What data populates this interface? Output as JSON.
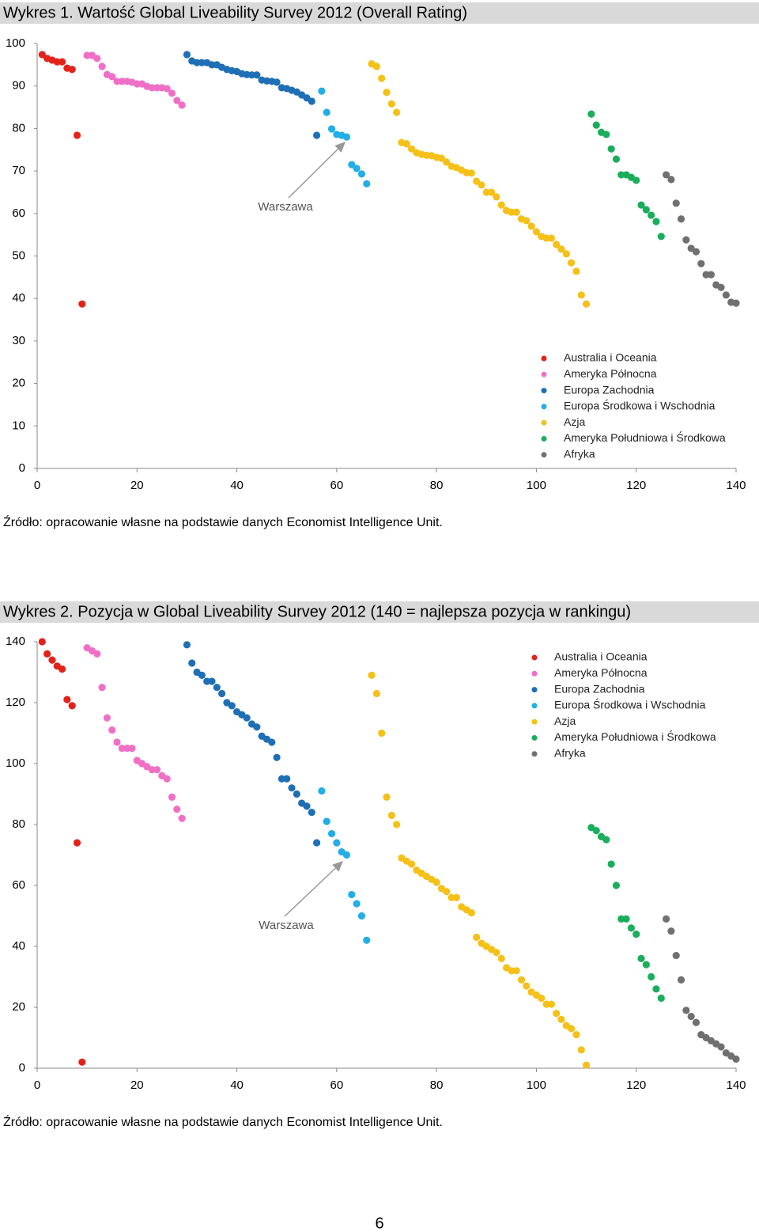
{
  "chart_data": [
    {
      "type": "scatter",
      "title": "Wykres 1. Wartość Global Liveability Survey 2012 (Overall Rating)",
      "source": "Źródło: opracowanie własne na podstawie danych Economist Intelligence Unit.",
      "annotations": [
        {
          "text": "Warszawa"
        }
      ],
      "xlim": [
        0,
        140
      ],
      "xticks": [
        0,
        20,
        40,
        60,
        80,
        100,
        120,
        140
      ],
      "ylim": [
        0,
        100
      ],
      "yticks": [
        0,
        10,
        20,
        30,
        40,
        50,
        60,
        70,
        80,
        90,
        100
      ],
      "legend": "bottom-right",
      "grid": false,
      "series": [
        {
          "name": "Australia i Oceania",
          "color": "#e2231a",
          "x": [
            1,
            2,
            3,
            4,
            5,
            6,
            7,
            8,
            9
          ],
          "values": [
            97.4,
            96.5,
            96.1,
            95.7,
            95.7,
            94.2,
            93.9,
            78.4,
            38.7
          ]
        },
        {
          "name": "Ameryka Północna",
          "color": "#f06fc6",
          "x": [
            10,
            11,
            12,
            13,
            14,
            15,
            16,
            17,
            18,
            19,
            20,
            21,
            22,
            23,
            24,
            25,
            26,
            27,
            28,
            29
          ],
          "values": [
            97.2,
            97.2,
            96.5,
            94.6,
            92.7,
            92.2,
            91.1,
            91.1,
            91.1,
            90.9,
            90.5,
            90.5,
            89.9,
            89.6,
            89.6,
            89.6,
            89.4,
            88.3,
            86.6,
            85.5
          ]
        },
        {
          "name": "Europa Zachodnia",
          "color": "#1f6fb5",
          "x": [
            30,
            31,
            32,
            33,
            34,
            35,
            36,
            37,
            38,
            39,
            40,
            41,
            42,
            43,
            44,
            45,
            46,
            47,
            48,
            49,
            50,
            51,
            52,
            53,
            54,
            55,
            56
          ],
          "values": [
            97.4,
            95.9,
            95.5,
            95.5,
            95.5,
            95.0,
            95.0,
            94.4,
            93.9,
            93.6,
            93.4,
            92.9,
            92.7,
            92.6,
            92.6,
            91.4,
            91.2,
            91.1,
            90.9,
            89.6,
            89.4,
            89.0,
            88.6,
            87.9,
            87.2,
            86.4,
            78.4
          ]
        },
        {
          "name": "Europa Środkowa i Wschodnia",
          "color": "#22aee6",
          "x": [
            57,
            58,
            59,
            60,
            61,
            62,
            63,
            64,
            65,
            66
          ],
          "values": [
            88.8,
            83.8,
            79.9,
            78.6,
            78.4,
            78.0,
            71.5,
            70.6,
            69.3,
            67.0
          ]
        },
        {
          "name": "Azja",
          "color": "#f5c018",
          "x": [
            67,
            68,
            69,
            70,
            71,
            72,
            73,
            74,
            75,
            76,
            77,
            78,
            79,
            80,
            81,
            82,
            83,
            84,
            85,
            86,
            87,
            88,
            89,
            90,
            91,
            92,
            93,
            94,
            95,
            96,
            97,
            98,
            99,
            100,
            101,
            102,
            103,
            104,
            105,
            106,
            107,
            108,
            109,
            110
          ],
          "values": [
            95.2,
            94.6,
            91.8,
            88.5,
            85.8,
            83.8,
            76.7,
            76.4,
            75.2,
            74.3,
            73.9,
            73.7,
            73.6,
            73.2,
            73.0,
            72.1,
            71.1,
            70.8,
            70.2,
            69.6,
            69.5,
            67.6,
            66.7,
            65.0,
            65.0,
            63.9,
            62.0,
            60.7,
            60.3,
            60.3,
            58.7,
            58.3,
            57.0,
            55.7,
            54.6,
            54.2,
            54.2,
            52.7,
            51.6,
            50.5,
            48.4,
            46.4,
            40.8,
            38.7
          ]
        },
        {
          "name": "Ameryka Południowa i Środkowa",
          "color": "#1aae5c",
          "x": [
            111,
            112,
            113,
            114,
            115,
            116,
            117,
            118,
            119,
            120,
            121,
            122,
            123,
            124,
            125
          ],
          "values": [
            83.4,
            80.8,
            79.1,
            78.6,
            75.2,
            72.8,
            69.1,
            69.1,
            68.5,
            67.8,
            62.0,
            60.9,
            59.6,
            58.1,
            54.6
          ]
        },
        {
          "name": "Afryka",
          "color": "#707070",
          "x": [
            126,
            127,
            128,
            129,
            130,
            131,
            132,
            133,
            134,
            135,
            136,
            137,
            138,
            139,
            140
          ],
          "values": [
            69.1,
            68.0,
            62.4,
            58.7,
            53.8,
            51.8,
            51.0,
            48.2,
            45.6,
            45.6,
            43.2,
            42.6,
            40.8,
            39.1,
            38.9
          ]
        }
      ]
    },
    {
      "type": "scatter",
      "title": "Wykres 2. Pozycja w Global Liveability Survey 2012 (140 = najlepsza pozycja w rankingu)",
      "source": "Źródło: opracowanie własne na podstawie danych Economist Intelligence Unit.",
      "annotations": [
        {
          "text": "Warszawa"
        }
      ],
      "xlim": [
        0,
        140
      ],
      "xticks": [
        0,
        20,
        40,
        60,
        80,
        100,
        120,
        140
      ],
      "ylim": [
        0,
        140
      ],
      "yticks": [
        0,
        20,
        40,
        60,
        80,
        100,
        120,
        140
      ],
      "legend": "top-right",
      "grid": false,
      "series": [
        {
          "name": "Australia i Oceania",
          "color": "#e2231a",
          "x": [
            1,
            2,
            3,
            4,
            5,
            6,
            7,
            8,
            9
          ],
          "values": [
            140,
            136,
            134,
            132,
            131,
            121,
            119,
            74,
            2
          ]
        },
        {
          "name": "Ameryka Północna",
          "color": "#f06fc6",
          "x": [
            10,
            11,
            12,
            13,
            14,
            15,
            16,
            17,
            18,
            19,
            20,
            21,
            22,
            23,
            24,
            25,
            26,
            27,
            28,
            29
          ],
          "values": [
            138,
            137,
            136,
            125,
            115,
            111,
            107,
            105,
            105,
            105,
            101,
            100,
            99,
            98,
            98,
            96,
            95,
            89,
            85,
            82
          ]
        },
        {
          "name": "Europa Zachodnia",
          "color": "#1f6fb5",
          "x": [
            30,
            31,
            32,
            33,
            34,
            35,
            36,
            37,
            38,
            39,
            40,
            41,
            42,
            43,
            44,
            45,
            46,
            47,
            48,
            49,
            50,
            51,
            52,
            53,
            54,
            55,
            56
          ],
          "values": [
            139,
            133,
            130,
            129,
            127,
            127,
            125,
            123,
            120,
            119,
            117,
            116,
            115,
            113,
            112,
            109,
            108,
            107,
            102,
            95,
            95,
            92,
            90,
            87,
            86,
            84,
            74
          ]
        },
        {
          "name": "Europa Środkowa i Wschodnia",
          "color": "#22aee6",
          "x": [
            57,
            58,
            59,
            60,
            61,
            62,
            63,
            64,
            65,
            66
          ],
          "values": [
            91,
            81,
            77,
            74,
            71,
            70,
            57,
            54,
            50,
            42
          ]
        },
        {
          "name": "Azja",
          "color": "#f5c018",
          "x": [
            67,
            68,
            69,
            70,
            71,
            72,
            73,
            74,
            75,
            76,
            77,
            78,
            79,
            80,
            81,
            82,
            83,
            84,
            85,
            86,
            87,
            88,
            89,
            90,
            91,
            92,
            93,
            94,
            95,
            96,
            97,
            98,
            99,
            100,
            101,
            102,
            103,
            104,
            105,
            106,
            107,
            108,
            109,
            110
          ],
          "values": [
            129,
            123,
            110,
            89,
            83,
            80,
            69,
            68,
            67,
            65,
            64,
            63,
            62,
            61,
            59,
            58,
            56,
            56,
            53,
            52,
            51,
            43,
            41,
            40,
            39,
            38,
            36,
            33,
            32,
            32,
            29,
            27,
            25,
            24,
            23,
            21,
            21,
            18,
            16,
            14,
            13,
            11,
            6,
            1
          ]
        },
        {
          "name": "Ameryka Południowa i Środkowa",
          "color": "#1aae5c",
          "x": [
            111,
            112,
            113,
            114,
            115,
            116,
            117,
            118,
            119,
            120,
            121,
            122,
            123,
            124,
            125
          ],
          "values": [
            79,
            78,
            76,
            75,
            67,
            60,
            49,
            49,
            46,
            44,
            36,
            34,
            30,
            26,
            23
          ]
        },
        {
          "name": "Afryka",
          "color": "#707070",
          "x": [
            126,
            127,
            128,
            129,
            130,
            131,
            132,
            133,
            134,
            135,
            136,
            137,
            138,
            139,
            140
          ],
          "values": [
            49,
            45,
            37,
            29,
            19,
            17,
            15,
            11,
            10,
            9,
            8,
            7,
            5,
            4,
            3
          ]
        }
      ]
    }
  ],
  "footer": {
    "page": "6"
  }
}
